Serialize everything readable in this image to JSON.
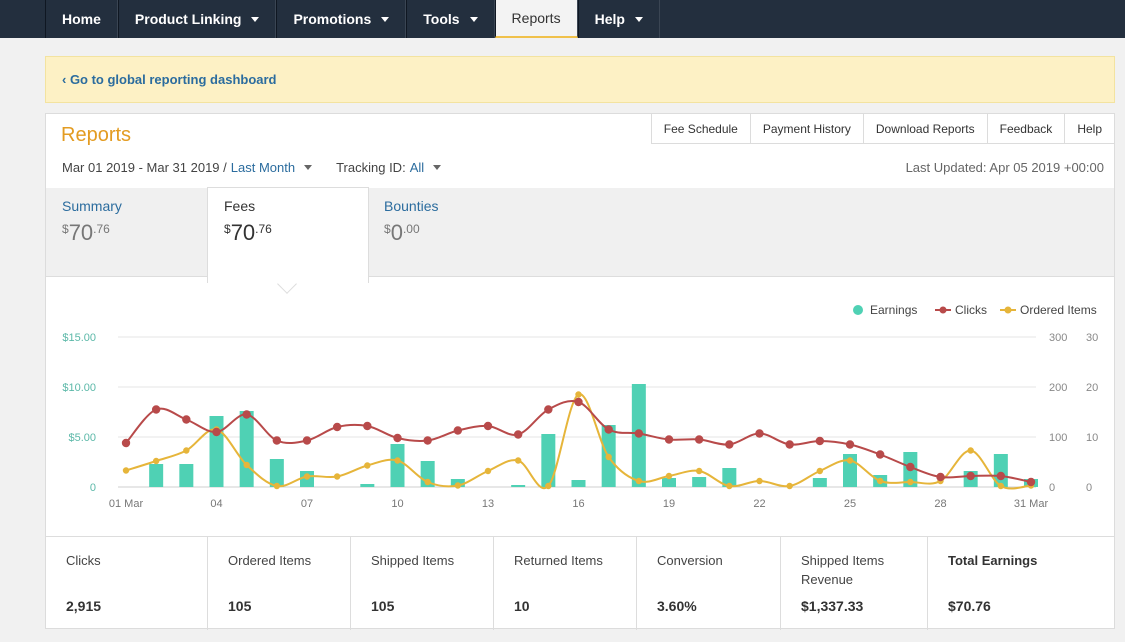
{
  "nav": [
    {
      "label": "Home",
      "caret": false,
      "active": false
    },
    {
      "label": "Product Linking",
      "caret": true,
      "active": false
    },
    {
      "label": "Promotions",
      "caret": true,
      "active": false
    },
    {
      "label": "Tools",
      "caret": true,
      "active": false
    },
    {
      "label": "Reports",
      "caret": false,
      "active": true
    },
    {
      "label": "Help",
      "caret": true,
      "active": false
    }
  ],
  "banner": {
    "link": "‹ Go to global reporting dashboard"
  },
  "reports": {
    "title": "Reports",
    "links": [
      "Fee Schedule",
      "Payment History",
      "Download Reports",
      "Feedback",
      "Help"
    ],
    "date_range": "Mar 01 2019 - Mar 31 2019 /",
    "period": "Last Month",
    "tracking_label": "Tracking ID:",
    "tracking_value": "All",
    "last_updated": "Last Updated: Apr 05 2019 +00:00"
  },
  "tabs": [
    {
      "label": "Summary",
      "currency": "$",
      "whole": "70",
      "cents": ".76"
    },
    {
      "label": "Fees",
      "currency": "$",
      "whole": "70",
      "cents": ".76"
    },
    {
      "label": "Bounties",
      "currency": "$",
      "whole": "0",
      "cents": ".00"
    }
  ],
  "chart_data": {
    "type": "bar+line",
    "legend": [
      "Earnings",
      "Clicks",
      "Ordered Items"
    ],
    "legend_placement": "top-right",
    "colors": {
      "earnings": "#4fd1b4",
      "clicks": "#b84a4a",
      "ordered": "#e6b53a",
      "left_axis": "#5bb8a8"
    },
    "x_tick_labels": [
      "01 Mar",
      "04",
      "07",
      "10",
      "13",
      "16",
      "19",
      "22",
      "25",
      "28",
      "31 Mar"
    ],
    "x_tick_days": [
      1,
      4,
      7,
      10,
      13,
      16,
      19,
      22,
      25,
      28,
      31
    ],
    "y_left_ticks": [
      "$15.00",
      "$10.00",
      "$5.00",
      "0"
    ],
    "y_left_range": [
      0,
      15
    ],
    "y_mid_ticks": [
      "300",
      "200",
      "100",
      "0"
    ],
    "y_mid_range": [
      0,
      300
    ],
    "y_right_ticks": [
      "30",
      "20",
      "10",
      "0"
    ],
    "y_right_range": [
      0,
      30
    ],
    "days": [
      1,
      2,
      3,
      4,
      5,
      6,
      7,
      8,
      9,
      10,
      11,
      12,
      13,
      14,
      15,
      16,
      17,
      18,
      19,
      20,
      21,
      22,
      23,
      24,
      25,
      26,
      27,
      28,
      29,
      30,
      31
    ],
    "earnings": [
      0,
      2.3,
      2.3,
      7.1,
      7.6,
      2.8,
      1.6,
      0,
      0.3,
      4.3,
      2.6,
      0.8,
      0,
      0.2,
      5.3,
      0.7,
      6.2,
      10.3,
      0.9,
      1.0,
      1.9,
      0,
      0,
      0.9,
      3.3,
      1.2,
      3.5,
      0,
      1.6,
      3.3,
      0.8
    ],
    "clicks": [
      88,
      155,
      135,
      110,
      145,
      93,
      93,
      120,
      122,
      98,
      93,
      113,
      122,
      105,
      155,
      170,
      115,
      107,
      95,
      95,
      85,
      107,
      85,
      92,
      85,
      65,
      40,
      20,
      22,
      22,
      10
    ],
    "ordered_items": [
      3.3,
      5.2,
      7.3,
      11.5,
      4.4,
      0.2,
      2.1,
      2.1,
      4.3,
      5.3,
      1.0,
      0.3,
      3.2,
      5.3,
      0.2,
      18.5,
      6.0,
      1.2,
      2.2,
      3.2,
      0.2,
      1.2,
      0.2,
      3.2,
      5.3,
      1.2,
      1.0,
      1.2,
      7.3,
      0.2,
      0.3
    ]
  },
  "stats": [
    {
      "label": "Clicks",
      "value": "2,915",
      "width": 0
    },
    {
      "label": "Ordered Items",
      "value": "105"
    },
    {
      "label": "Shipped Items",
      "value": "105"
    },
    {
      "label": "Returned Items",
      "value": "10"
    },
    {
      "label": "Conversion",
      "value": "3.60%"
    },
    {
      "label": "Shipped Items Revenue",
      "value": "$1,337.33"
    },
    {
      "label": "Total Earnings",
      "value": "$70.76"
    }
  ]
}
